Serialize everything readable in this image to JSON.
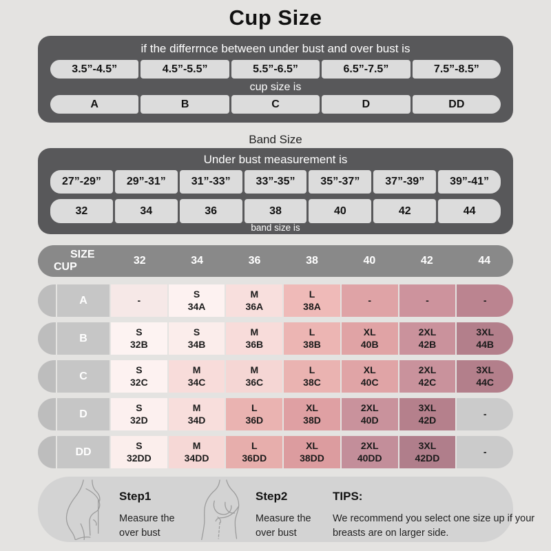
{
  "page": {
    "title": "Cup Size"
  },
  "colors": {
    "page_background": "#e4e3e1",
    "dark_panel": "#58585a",
    "pill_gray": "#dcdcdc",
    "table_header_gray": "#898989",
    "row_label_gray": "#c6c6c6",
    "row_cap_gray": "#bdbdbd",
    "steps_panel_gray": "#d3d3d3",
    "gradient_light": "#fdf3f2",
    "gradient_dark": "#b07e8b"
  },
  "cup_section": {
    "header": "if the differrnce between under bust and over bust is",
    "ranges": [
      "3.5”-4.5”",
      "4.5”-5.5”",
      "5.5”-6.5”",
      "6.5”-7.5”",
      "7.5”-8.5”"
    ],
    "subheader": "cup size is",
    "cups": [
      "A",
      "B",
      "C",
      "D",
      "DD"
    ]
  },
  "band_section": {
    "title": "Band Size",
    "header": "Under bust measurement is",
    "ranges": [
      "27”-29”",
      "29”-31”",
      "31”-33”",
      "33”-35”",
      "35”-37”",
      "37”-39”",
      "39”-41”"
    ],
    "bands": [
      "32",
      "34",
      "36",
      "38",
      "40",
      "42",
      "44"
    ],
    "footer": "band size is"
  },
  "size_table": {
    "corner_top": "SIZE",
    "corner_bottom": "CUP",
    "columns": [
      "32",
      "34",
      "36",
      "38",
      "40",
      "42",
      "44"
    ],
    "rows": [
      {
        "cup": "A",
        "cells": [
          {
            "lines": [
              "-"
            ],
            "bg": "#f6e8e7"
          },
          {
            "lines": [
              "S",
              "34A"
            ],
            "bg": "#fdf2f1"
          },
          {
            "lines": [
              "M",
              "36A"
            ],
            "bg": "#f8dfdd"
          },
          {
            "lines": [
              "L",
              "38A"
            ],
            "bg": "#efbab8"
          },
          {
            "lines": [
              "-"
            ],
            "bg": "#dfa3a6"
          },
          {
            "lines": [
              "-"
            ],
            "bg": "#cd939d"
          },
          {
            "lines": [
              "-"
            ],
            "bg": "#bb8490"
          }
        ]
      },
      {
        "cup": "B",
        "cells": [
          {
            "lines": [
              "S",
              "32B"
            ],
            "bg": "#fdf3f2"
          },
          {
            "lines": [
              "S",
              "34B"
            ],
            "bg": "#fbedeb"
          },
          {
            "lines": [
              "M",
              "36B"
            ],
            "bg": "#f8dcda"
          },
          {
            "lines": [
              "L",
              "38B"
            ],
            "bg": "#ecb5b3"
          },
          {
            "lines": [
              "XL",
              "40B"
            ],
            "bg": "#e0a3a5"
          },
          {
            "lines": [
              "2XL",
              "42B"
            ],
            "bg": "#ca929c"
          },
          {
            "lines": [
              "3XL",
              "44B"
            ],
            "bg": "#b37f8b"
          }
        ]
      },
      {
        "cup": "C",
        "cells": [
          {
            "lines": [
              "S",
              "32C"
            ],
            "bg": "#fdf2f1"
          },
          {
            "lines": [
              "M",
              "34C"
            ],
            "bg": "#f8dcda"
          },
          {
            "lines": [
              "M",
              "36C"
            ],
            "bg": "#f5d6d4"
          },
          {
            "lines": [
              "L",
              "38C"
            ],
            "bg": "#eab3b1"
          },
          {
            "lines": [
              "XL",
              "40C"
            ],
            "bg": "#e0a4a6"
          },
          {
            "lines": [
              "2XL",
              "42C"
            ],
            "bg": "#c9929c"
          },
          {
            "lines": [
              "3XL",
              "44C"
            ],
            "bg": "#b37f8b"
          }
        ]
      },
      {
        "cup": "D",
        "cells": [
          {
            "lines": [
              "S",
              "32D"
            ],
            "bg": "#fcf0ef"
          },
          {
            "lines": [
              "M",
              "34D"
            ],
            "bg": "#f8dedc"
          },
          {
            "lines": [
              "L",
              "36D"
            ],
            "bg": "#eab3b1"
          },
          {
            "lines": [
              "XL",
              "38D"
            ],
            "bg": "#dfa0a3"
          },
          {
            "lines": [
              "2XL",
              "40D"
            ],
            "bg": "#c9929c"
          },
          {
            "lines": [
              "3XL",
              "42D"
            ],
            "bg": "#b5808c"
          },
          {
            "lines": [
              "-"
            ],
            "bg": "#cbcbcb"
          }
        ]
      },
      {
        "cup": "DD",
        "cells": [
          {
            "lines": [
              "S",
              "32DD"
            ],
            "bg": "#fbeeec"
          },
          {
            "lines": [
              "M",
              "34DD"
            ],
            "bg": "#f6d8d6"
          },
          {
            "lines": [
              "L",
              "36DD"
            ],
            "bg": "#e7aeac"
          },
          {
            "lines": [
              "XL",
              "38DD"
            ],
            "bg": "#dc9c9f"
          },
          {
            "lines": [
              "2XL",
              "40DD"
            ],
            "bg": "#c38e9a"
          },
          {
            "lines": [
              "3XL",
              "42DD"
            ],
            "bg": "#b07e8b"
          },
          {
            "lines": [
              "-"
            ],
            "bg": "#cbcbcb"
          }
        ]
      }
    ]
  },
  "steps": [
    {
      "label": "Step1",
      "desc": "Measure the over bust"
    },
    {
      "label": "Step2",
      "desc": "Measure the over bust"
    }
  ],
  "tips": {
    "label": "TIPS:",
    "text": "We recommend you select one size up if your breasts are on larger side."
  }
}
